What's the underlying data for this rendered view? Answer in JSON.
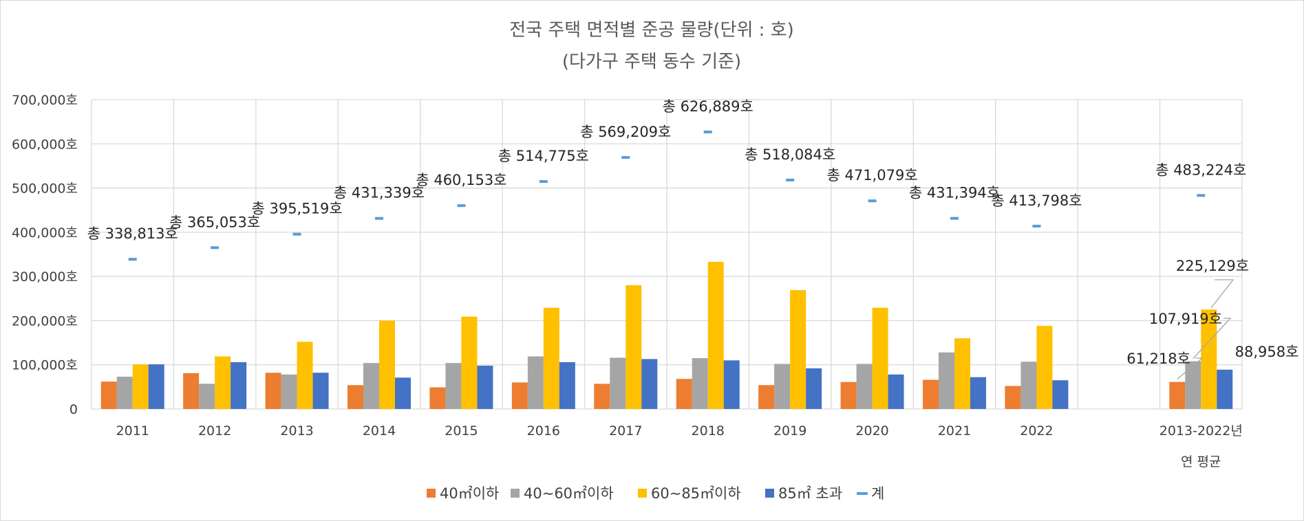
{
  "chart_data": {
    "type": "bar",
    "title": "전국 주택 면적별 준공 물량(단위 : 호)",
    "subtitle": "(다가구 주택 동수 기준)",
    "categories": [
      "2011",
      "2012",
      "2013",
      "2014",
      "2015",
      "2016",
      "2017",
      "2018",
      "2019",
      "2020",
      "2021",
      "2022",
      "",
      "2013-2022년"
    ],
    "category_line2": [
      "",
      "",
      "",
      "",
      "",
      "",
      "",
      "",
      "",
      "",
      "",
      "",
      "",
      "연 평균"
    ],
    "yticks": [
      "0",
      "100,000호",
      "200,000호",
      "300,000호",
      "400,000호",
      "500,000호",
      "600,000호",
      "700,000호"
    ],
    "ylim": [
      0,
      700000
    ],
    "grid": true,
    "legend_position": "bottom",
    "series": [
      {
        "name": "40㎡이하",
        "color": "#ed7d31",
        "values": [
          62000,
          81000,
          82000,
          54000,
          49000,
          60000,
          57000,
          68000,
          54000,
          61000,
          66000,
          52000,
          null,
          61218
        ]
      },
      {
        "name": "40~60㎡이하",
        "color": "#a5a5a5",
        "values": [
          73000,
          57000,
          78000,
          104000,
          104000,
          119000,
          116000,
          115000,
          102000,
          102000,
          128000,
          107000,
          null,
          107919
        ]
      },
      {
        "name": "60~85㎡이하",
        "color": "#ffc000",
        "values": [
          101000,
          119000,
          152000,
          200000,
          209000,
          229000,
          280000,
          333000,
          269000,
          229000,
          160000,
          188000,
          null,
          225129
        ]
      },
      {
        "name": "85㎡ 초과",
        "color": "#4472c4",
        "values": [
          101000,
          106000,
          82000,
          71000,
          98000,
          106000,
          113000,
          110000,
          92000,
          78000,
          72000,
          65000,
          null,
          88958
        ]
      }
    ],
    "total_series": {
      "name": "계",
      "color": "#5b9bd5",
      "values": [
        338813,
        365053,
        395519,
        431339,
        460153,
        514775,
        569209,
        626889,
        518084,
        471079,
        431394,
        413798,
        null,
        483224
      ],
      "labels": [
        "총 338,813호",
        "총 365,053호",
        "총 395,519호",
        "총 431,339호",
        "총 460,153호",
        "총 514,775호",
        "총 569,209호",
        "총 626,889호",
        "총 518,084호",
        "총 471,079호",
        "총 431,394호",
        "총 413,798호",
        "",
        "총 483,224호"
      ]
    },
    "average_labels": [
      "61,218호",
      "107,919호",
      "225,129호",
      "88,958호"
    ]
  }
}
